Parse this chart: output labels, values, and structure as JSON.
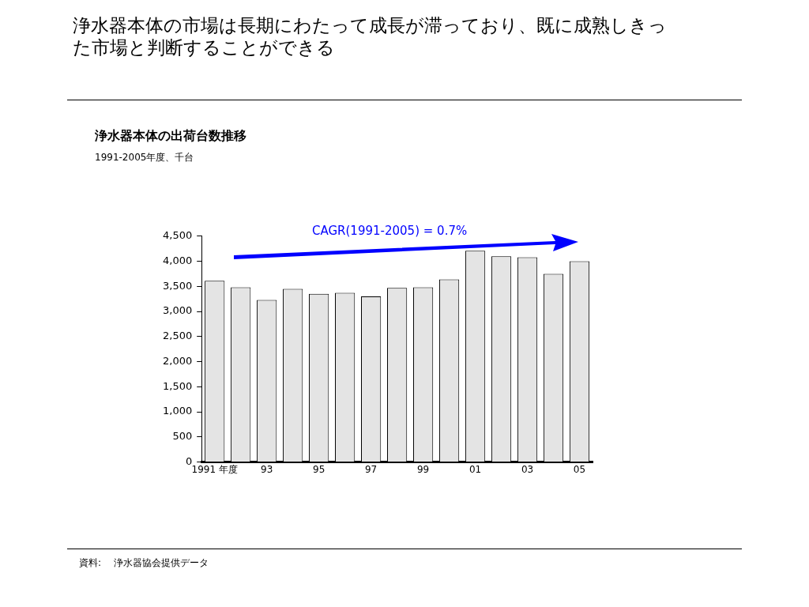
{
  "chart_data": {
    "type": "bar",
    "title": "浄水器本体の市場は長期にわたって成長が滞っており、既に成熟しきった市場と判断することができる",
    "subtitle": "浄水器本体の出荷台数推移",
    "categories": [
      "1991 年度",
      null,
      "93",
      null,
      "95",
      null,
      "97",
      null,
      "99",
      null,
      "01",
      null,
      "03",
      null,
      "05"
    ],
    "values": [
      3610,
      3480,
      3230,
      3450,
      3350,
      3370,
      3300,
      3470,
      3480,
      3640,
      4210,
      4100,
      4080,
      3750,
      4000
    ],
    "color": "#e4e4e4",
    "ylim": [
      0,
      4500
    ],
    "yticks": [
      0,
      {
        "value": 500,
        "label": "500"
      },
      {
        "value": 1000,
        "label": "1,000"
      },
      {
        "value": 1500,
        "label": "1,500"
      },
      {
        "value": 2000,
        "label": "2,000"
      },
      {
        "value": 2500,
        "label": "2,500"
      },
      {
        "value": 3000,
        "label": "3,000"
      },
      {
        "value": 3500,
        "label": "3,500"
      },
      {
        "value": 4000,
        "label": "4,000"
      },
      {
        "value": 4500,
        "label": "4,500"
      }
    ],
    "grid": false,
    "legend": false,
    "annotations": [
      "1991-2005年度、千台",
      "CAGR(1991-2005) = 0.7%",
      "資料:　 浄水器協会提供データ"
    ]
  }
}
